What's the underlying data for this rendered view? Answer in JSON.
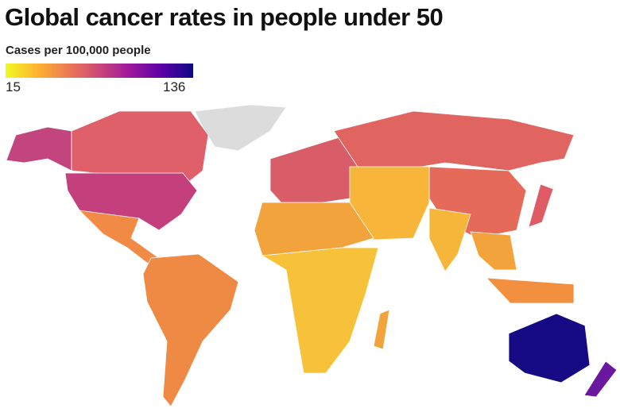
{
  "title": "Global cancer rates in people under 50",
  "legend": {
    "title": "Cases per 100,000 people",
    "min": "15",
    "max": "136",
    "colors": [
      "#f0f921",
      "#fdb42f",
      "#ed7953",
      "#cc4778",
      "#9c179e",
      "#5c01a6",
      "#0d0887"
    ]
  },
  "regions": [
    {
      "name": "greenland",
      "color": "#dcdcdc"
    },
    {
      "name": "alaska",
      "color": "#c2457e"
    },
    {
      "name": "canada",
      "color": "#e0606a"
    },
    {
      "name": "united-states",
      "color": "#c3407c"
    },
    {
      "name": "mexico-central-america",
      "color": "#f08a45"
    },
    {
      "name": "south-america",
      "color": "#ef8a45"
    },
    {
      "name": "europe",
      "color": "#d85d68"
    },
    {
      "name": "russia",
      "color": "#e0645f"
    },
    {
      "name": "china-east-asia",
      "color": "#e56a5a"
    },
    {
      "name": "japan",
      "color": "#df5c66"
    },
    {
      "name": "middle-east-central-asia",
      "color": "#f7b53a"
    },
    {
      "name": "india",
      "color": "#f6b63a"
    },
    {
      "name": "southeast-asia",
      "color": "#f3a33b"
    },
    {
      "name": "indonesia",
      "color": "#f29040"
    },
    {
      "name": "north-africa",
      "color": "#f3a33b"
    },
    {
      "name": "sub-saharan-africa",
      "color": "#f7c23a"
    },
    {
      "name": "madagascar",
      "color": "#f3a33b"
    },
    {
      "name": "australia",
      "color": "#150a84"
    },
    {
      "name": "new-zealand",
      "color": "#6a18a0"
    }
  ]
}
